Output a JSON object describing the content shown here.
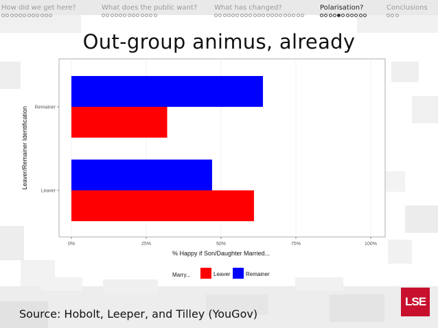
{
  "nav": {
    "sections": [
      {
        "label": "How did we get here?",
        "dots": 12,
        "current": -1,
        "active": false
      },
      {
        "label": "What does the public want?",
        "dots": 13,
        "current": -1,
        "active": false
      },
      {
        "label": "What has changed?",
        "dots": 21,
        "current": -1,
        "active": false
      },
      {
        "label": "Polarisation?",
        "dots": 11,
        "current": 4,
        "active": true
      },
      {
        "label": "Conclusions",
        "dots": 3,
        "current": -1,
        "active": false
      }
    ]
  },
  "slide": {
    "title": "Out-group animus, already",
    "source": "Source: Hobolt, Leeper, and Tilley (YouGov)",
    "logo": "LSE"
  },
  "colors": {
    "leaver": "#ff0000",
    "remainer": "#0000ff",
    "panel_border": "#9a9a9a",
    "grid": "#e6e6e6"
  },
  "chart_data": {
    "type": "bar",
    "orientation": "horizontal",
    "categories": [
      "Leaver",
      "Remainer"
    ],
    "series": [
      {
        "name": "Leaver",
        "values": [
          61,
          32
        ]
      },
      {
        "name": "Remainer",
        "values": [
          47,
          64
        ]
      }
    ],
    "xlabel": "% Happy if Son/Daughter Married...",
    "ylabel": "Leaver/Remainer Identification",
    "xlim": [
      0,
      100
    ],
    "xticks": [
      0,
      25,
      50,
      75,
      100
    ],
    "xtick_labels": [
      "0%",
      "25%",
      "50%",
      "75%",
      "100%"
    ],
    "grid": true,
    "legend": {
      "title": "Marry...",
      "placement": "bottom",
      "entries": [
        "Leaver",
        "Remainer"
      ]
    }
  }
}
